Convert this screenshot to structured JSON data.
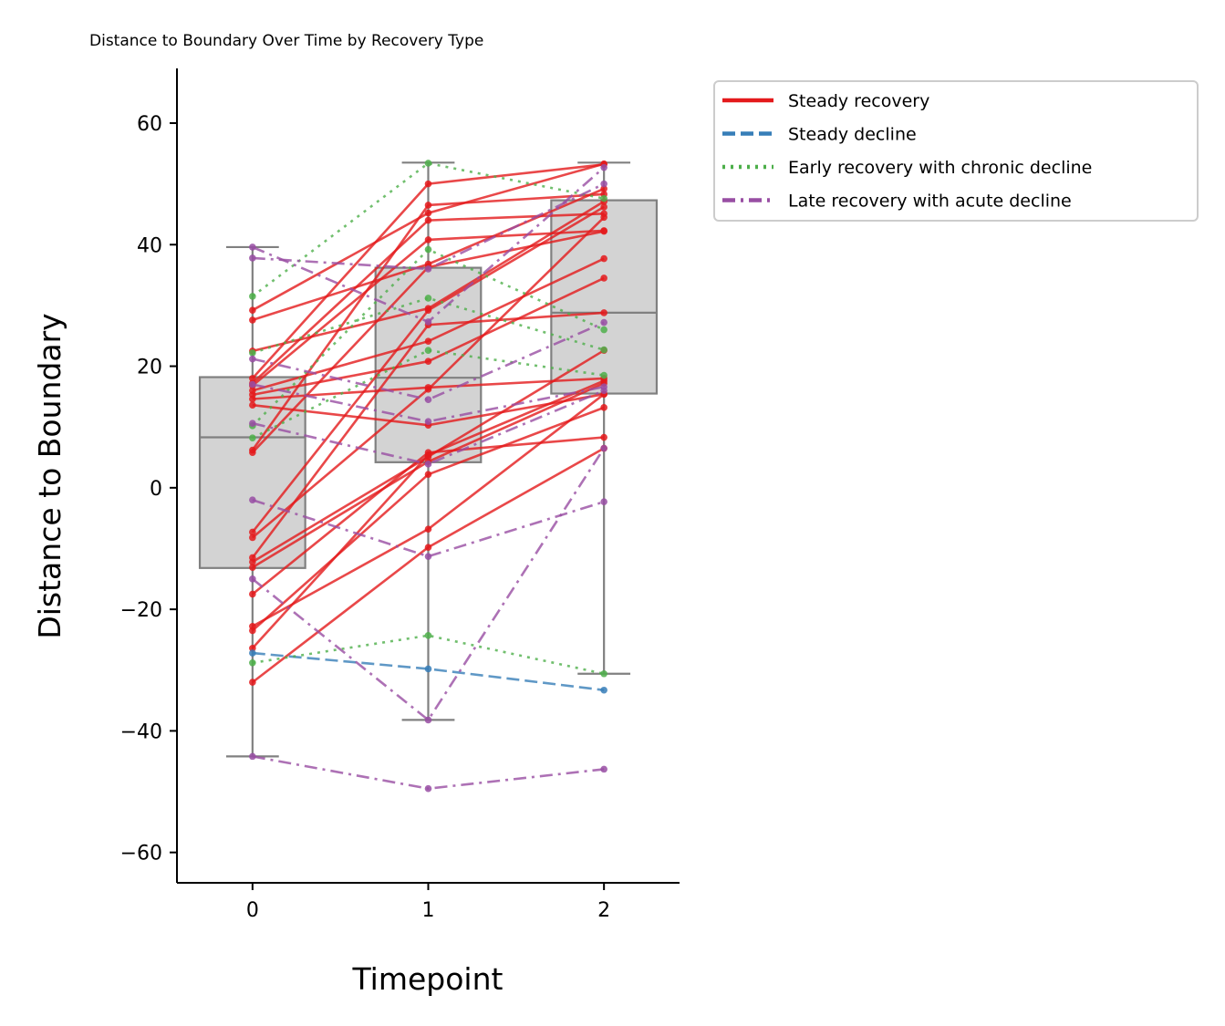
{
  "chart_data": {
    "type": "line",
    "title": "Distance to Boundary Over Time by Recovery Type",
    "xlabel": "Timepoint",
    "ylabel": "Distance to Boundary",
    "x_ticks": [
      0,
      1,
      2
    ],
    "y_ticks": [
      -60,
      -40,
      -20,
      0,
      20,
      40,
      60
    ],
    "y_tick_labels": [
      "−60",
      "−40",
      "−20",
      "0",
      "20",
      "40",
      "60"
    ],
    "xlim": [
      -0.43,
      2.43
    ],
    "ylim": [
      -65,
      69
    ],
    "grid": false,
    "legend_position": "outside-top-right",
    "boxplot": [
      {
        "x": 0,
        "whisker_low": -44.2,
        "q1": -13.2,
        "median": 8.3,
        "q3": 18.2,
        "whisker_high": 39.6
      },
      {
        "x": 1,
        "whisker_low": -38.2,
        "q1": 4.2,
        "median": 18.1,
        "q3": 36.2,
        "whisker_high": 53.5
      },
      {
        "x": 2,
        "whisker_low": -30.6,
        "q1": 15.5,
        "median": 28.8,
        "q3": 47.3,
        "whisker_high": 53.5
      }
    ],
    "groups": [
      {
        "name": "Steady recovery",
        "color": "#e41a1c",
        "dash": "solid",
        "lines": [
          [
            29.2,
            45.2,
            53.3
          ],
          [
            27.6,
            36.8,
            49.2
          ],
          [
            22.5,
            29.5,
            47.1
          ],
          [
            18.0,
            50.0,
            53.2
          ],
          [
            17.2,
            44.0,
            45.1
          ],
          [
            16.8,
            40.8,
            42.3
          ],
          [
            16.0,
            24.1,
            37.7
          ],
          [
            15.3,
            20.8,
            34.5
          ],
          [
            14.6,
            16.5,
            18.0
          ],
          [
            13.6,
            10.3,
            15.4
          ],
          [
            6.2,
            46.5,
            48.3
          ],
          [
            5.8,
            36.3,
            42.2
          ],
          [
            -7.3,
            29.2,
            46.2
          ],
          [
            -8.2,
            16.2,
            44.5
          ],
          [
            -11.5,
            26.8,
            28.8
          ],
          [
            -12.2,
            5.1,
            22.6
          ],
          [
            -13.1,
            4.3,
            17.2
          ],
          [
            -17.5,
            5.8,
            8.3
          ],
          [
            -22.8,
            -6.8,
            15.4
          ],
          [
            -23.5,
            2.2,
            13.2
          ],
          [
            -26.4,
            5.4,
            17.6
          ],
          [
            -32.0,
            -9.8,
            6.5
          ]
        ]
      },
      {
        "name": "Steady decline",
        "color": "#377eb8",
        "dash": "dashed",
        "lines": [
          [
            -27.2,
            -29.8,
            -33.3
          ]
        ]
      },
      {
        "name": "Early recovery with chronic decline",
        "color": "#4daf4a",
        "dash": "dotted",
        "lines": [
          [
            31.5,
            53.4,
            47.6
          ],
          [
            22.2,
            31.2,
            22.7
          ],
          [
            10.2,
            39.2,
            26.0
          ],
          [
            8.2,
            22.6,
            18.5
          ],
          [
            -28.8,
            -24.3,
            -30.6
          ]
        ]
      },
      {
        "name": "Late recovery with acute decline",
        "color": "#984ea3",
        "dash": "dashdot",
        "lines": [
          [
            39.6,
            27.3,
            52.7
          ],
          [
            37.8,
            36.0,
            50.0
          ],
          [
            21.2,
            14.5,
            27.2
          ],
          [
            17.0,
            10.9,
            16.6
          ],
          [
            10.6,
            3.9,
            16.0
          ],
          [
            -2.0,
            -11.3,
            -2.3
          ],
          [
            -15.0,
            -38.2,
            6.5
          ],
          [
            -44.2,
            -49.5,
            -46.3
          ]
        ]
      }
    ]
  }
}
